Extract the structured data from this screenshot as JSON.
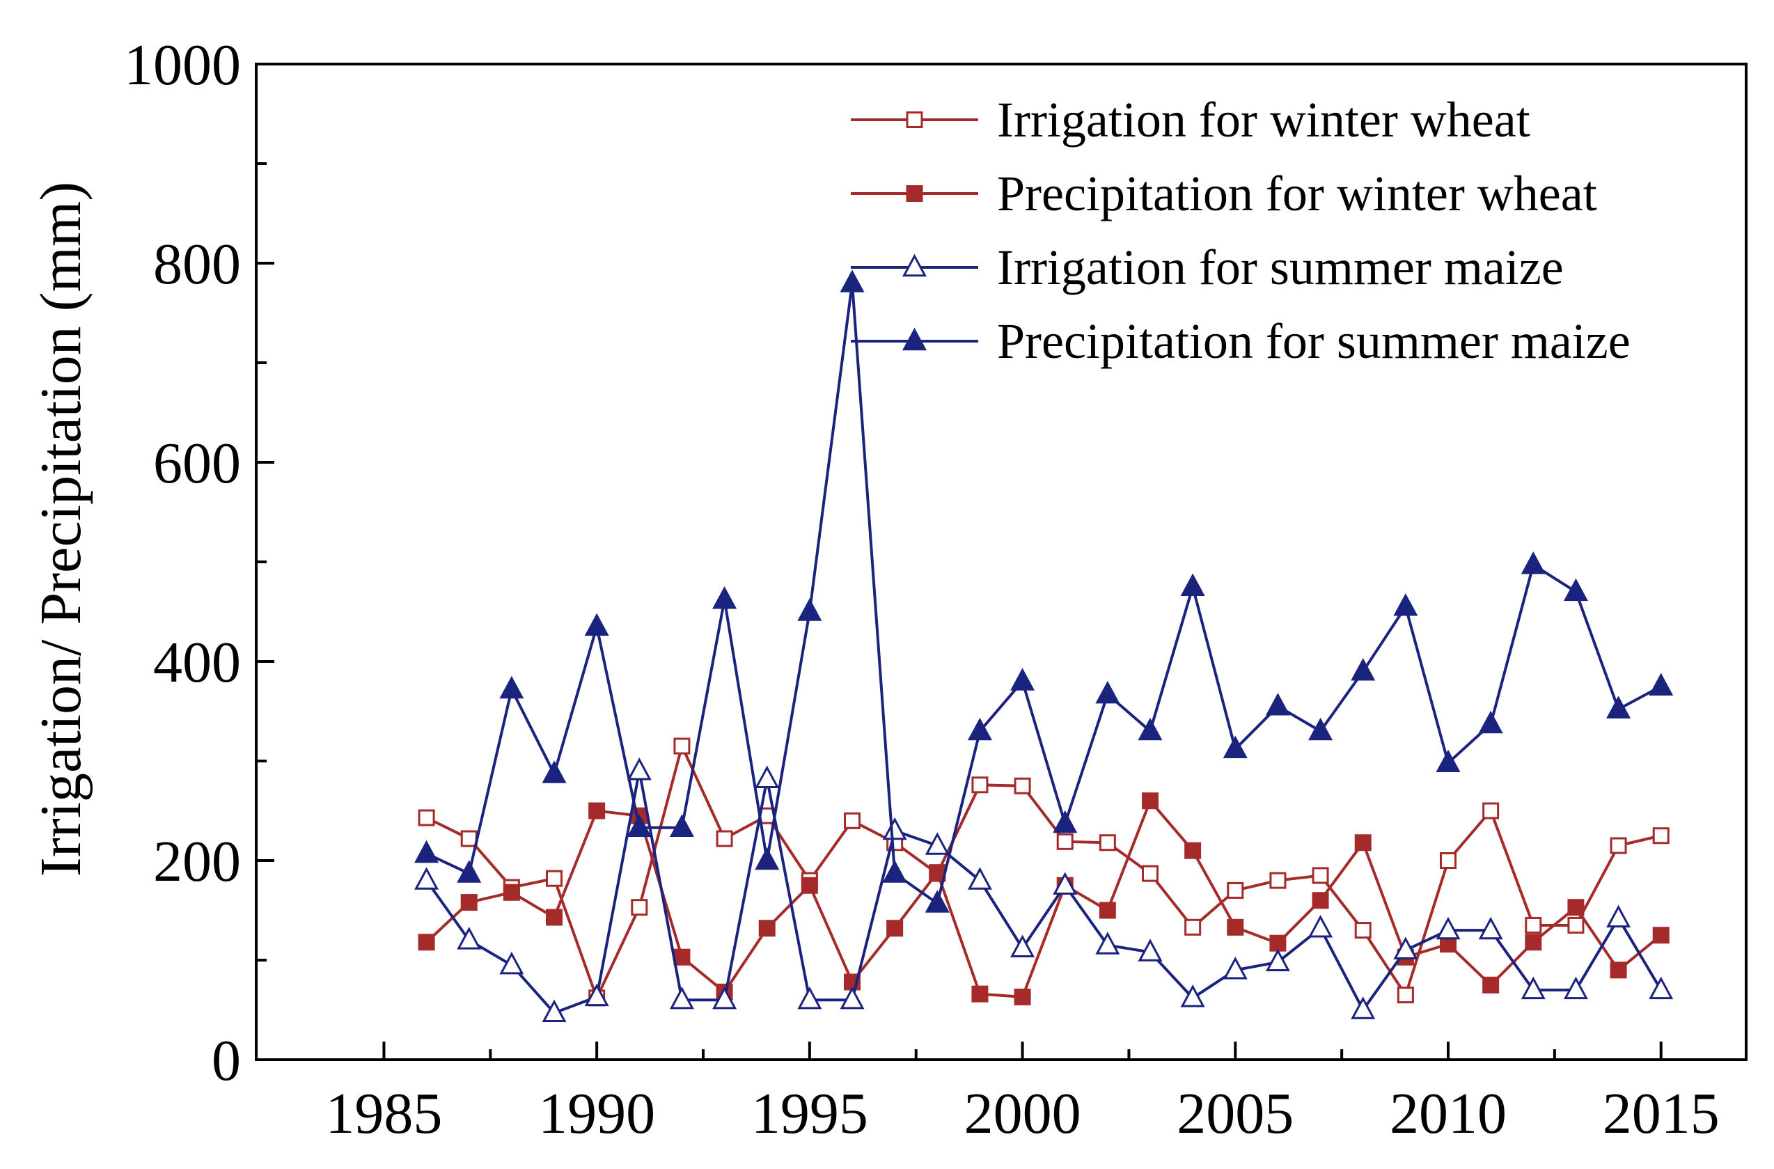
{
  "chart_data": {
    "type": "line",
    "title": "",
    "xlabel": "",
    "ylabel": "Irrigation/ Precipitation (mm)",
    "xlim": [
      1982,
      2017
    ],
    "ylim": [
      0,
      1000
    ],
    "xticks": [
      1985,
      1990,
      1995,
      2000,
      2005,
      2010,
      2015
    ],
    "yticks": [
      0,
      200,
      400,
      600,
      800,
      1000
    ],
    "grid": false,
    "legend_position": "top-right",
    "x": [
      1986,
      1987,
      1988,
      1989,
      1990,
      1991,
      1992,
      1993,
      1994,
      1995,
      1996,
      1997,
      1998,
      1999,
      2000,
      2001,
      2002,
      2003,
      2004,
      2005,
      2006,
      2007,
      2008,
      2009,
      2010,
      2011,
      2012,
      2013,
      2014,
      2015
    ],
    "series": [
      {
        "name": "Irrigation for winter wheat",
        "color": "#a52a2a",
        "marker": "square-open",
        "values": [
          243,
          222,
          173,
          182,
          62,
          153,
          315,
          222,
          245,
          180,
          240,
          218,
          187,
          276,
          275,
          219,
          218,
          187,
          133,
          170,
          180,
          185,
          130,
          65,
          200,
          250,
          135,
          135,
          215,
          225
        ]
      },
      {
        "name": "Precipitation for winter wheat",
        "color": "#a52a2a",
        "marker": "square-filled",
        "values": [
          118,
          158,
          168,
          143,
          250,
          245,
          103,
          68,
          132,
          175,
          78,
          132,
          188,
          66,
          63,
          175,
          150,
          260,
          210,
          133,
          117,
          160,
          218,
          103,
          116,
          75,
          118,
          153,
          90,
          125
        ]
      },
      {
        "name": "Irrigation for summer maize",
        "color": "#1a237e",
        "marker": "triangle-open",
        "values": [
          180,
          120,
          95,
          47,
          63,
          290,
          60,
          60,
          282,
          60,
          60,
          230,
          215,
          180,
          112,
          175,
          115,
          108,
          62,
          90,
          98,
          132,
          50,
          110,
          130,
          130,
          70,
          70,
          142,
          70
        ]
      },
      {
        "name": "Precipitation for summer maize",
        "color": "#1a237e",
        "marker": "triangle-filled",
        "values": [
          207,
          187,
          372,
          287,
          435,
          233,
          233,
          462,
          200,
          450,
          780,
          187,
          157,
          330,
          380,
          237,
          367,
          330,
          475,
          312,
          355,
          330,
          390,
          455,
          298,
          337,
          497,
          470,
          352,
          375
        ]
      }
    ]
  }
}
